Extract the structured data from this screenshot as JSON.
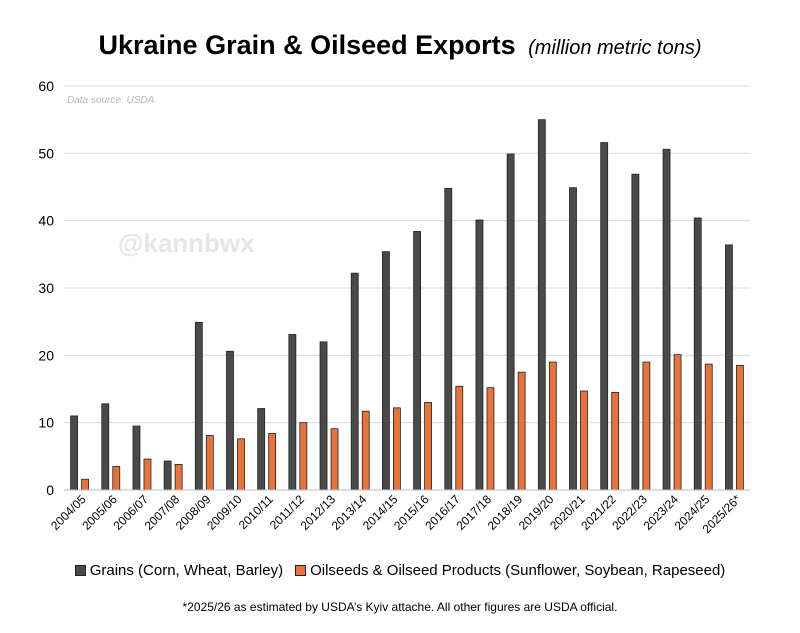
{
  "title": {
    "main": "Ukraine Grain & Oilseed Exports",
    "sub": "(million metric tons)"
  },
  "source_note": "Data source: USDA",
  "watermark": "@kannbwx",
  "footnote": "*2025/26 as estimated by USDA’s Kyiv attache. All other figures are USDA official.",
  "colors": {
    "grains": "#4a4a4a",
    "oilseeds": "#e8733a",
    "gridline": "#d9d9d9",
    "axis": "#000000"
  },
  "chart_data": {
    "type": "bar",
    "title": "Ukraine Grain & Oilseed Exports",
    "subtitle": "(million metric tons)",
    "ylim": [
      0,
      60
    ],
    "yticks": [
      0,
      10,
      20,
      30,
      40,
      50,
      60
    ],
    "grid": true,
    "legend_position": "bottom",
    "categories": [
      "2004/05",
      "2005/06",
      "2006/07",
      "2007/08",
      "2008/09",
      "2009/10",
      "2010/11",
      "2011/12",
      "2012/13",
      "2013/14",
      "2014/15",
      "2015/16",
      "2016/17",
      "2017/18",
      "2018/19",
      "2019/20",
      "2020/21",
      "2021/22",
      "2022/23",
      "2023/24",
      "2024/25",
      "2025/26*"
    ],
    "series": [
      {
        "name": "Grains (Corn, Wheat, Barley)",
        "color": "#4a4a4a",
        "values": [
          11.0,
          12.8,
          9.5,
          4.3,
          24.9,
          20.6,
          12.1,
          23.1,
          22.0,
          32.2,
          35.4,
          38.4,
          44.8,
          40.1,
          49.9,
          55.0,
          44.9,
          51.6,
          46.9,
          50.6,
          40.4,
          36.4
        ]
      },
      {
        "name": "Oilseeds & Oilseed Products (Sunflower, Soybean, Rapeseed)",
        "color": "#e8733a",
        "values": [
          1.6,
          3.5,
          4.6,
          3.8,
          8.1,
          7.6,
          8.4,
          10.0,
          9.1,
          11.7,
          12.2,
          13.0,
          15.4,
          15.2,
          17.5,
          19.0,
          14.7,
          14.5,
          19.0,
          20.1,
          18.7,
          18.5
        ]
      }
    ]
  }
}
